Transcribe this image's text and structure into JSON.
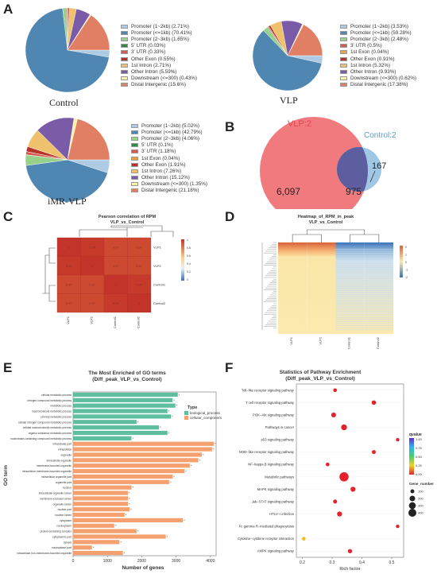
{
  "labels": {
    "A": "A",
    "B": "B",
    "C": "C",
    "D": "D",
    "E": "E",
    "F": "F"
  },
  "colors": {
    "p12": "#aecbe3",
    "p1": "#4f86b2",
    "p23": "#98d18a",
    "utr5": "#2f8a43",
    "utr3": "#d65a4f",
    "exon1": "#e6a046",
    "otherexon": "#b5312a",
    "intron1": "#efc16c",
    "otherintron": "#7a5ba8",
    "downstream": "#f7f3a3",
    "distal": "#e07f63",
    "vlp2": "#f07a7e",
    "control2": "#8fbde0",
    "overlap": "#5d5ea0",
    "go_bio": "#5fbe9f",
    "go_cell": "#f4a06f"
  },
  "chart_data": [
    {
      "type": "pie",
      "panel": "A",
      "caption": "Control",
      "series": [
        {
          "name": "Promoter (1~2kb) (2.71%)",
          "value": 2.71
        },
        {
          "name": "Promoter (<=1kb) (70.41%)",
          "value": 70.41
        },
        {
          "name": "Promoter (2~3kb) (1.65%)",
          "value": 1.65
        },
        {
          "name": "5' UTR (0.03%)",
          "value": 0.03
        },
        {
          "name": "3' UTR (0.33%)",
          "value": 0.33
        },
        {
          "name": "Other Exon (0.55%)",
          "value": 0.55
        },
        {
          "name": "1st Intron (2.71%)",
          "value": 2.71
        },
        {
          "name": "Other Intron (5.59%)",
          "value": 5.59
        },
        {
          "name": "Downstream (<=300) (0.43%)",
          "value": 0.43
        },
        {
          "name": "Distal Intergenic (15.6%)",
          "value": 15.6
        }
      ]
    },
    {
      "type": "pie",
      "panel": "A",
      "caption": "VLP",
      "series": [
        {
          "name": "Promoter (1~2kb) (3.53%)",
          "value": 3.53
        },
        {
          "name": "Promoter (<=1kb) (59.28%)",
          "value": 59.28
        },
        {
          "name": "Promoter (2~3kb) (2.48%)",
          "value": 2.48
        },
        {
          "name": "3' UTR (0.5%)",
          "value": 0.5
        },
        {
          "name": "1st Exon (0.04%)",
          "value": 0.04
        },
        {
          "name": "Other Exon (0.91%)",
          "value": 0.91
        },
        {
          "name": "1st Intron (5.32%)",
          "value": 5.32
        },
        {
          "name": "Other Intron (9.93%)",
          "value": 9.93
        },
        {
          "name": "Downstream (<=300) (0.62%)",
          "value": 0.62
        },
        {
          "name": "Distal Intergenic (17.38%)",
          "value": 17.38
        }
      ]
    },
    {
      "type": "pie",
      "panel": "A",
      "caption": "iMR-VLP",
      "series": [
        {
          "name": "Promoter (1~2kb) (5.02%)",
          "value": 5.02
        },
        {
          "name": "Promoter (<=1kb) (42.79%)",
          "value": 42.79
        },
        {
          "name": "Promoter (2~3kb) (4.06%)",
          "value": 4.06
        },
        {
          "name": "5' UTR (0.1%)",
          "value": 0.1
        },
        {
          "name": "3' UTR (1.18%)",
          "value": 1.18
        },
        {
          "name": "1st Exon (0.04%)",
          "value": 0.04
        },
        {
          "name": "Other Exon (1.91%)",
          "value": 1.91
        },
        {
          "name": "1st Intron (7.26%)",
          "value": 7.26
        },
        {
          "name": "Other Intron (15.12%)",
          "value": 15.12
        },
        {
          "name": "Downstream (<=300) (1.35%)",
          "value": 1.35
        },
        {
          "name": "Distal Intergenic (21.18%)",
          "value": 21.18
        }
      ]
    },
    {
      "type": "venn",
      "panel": "B",
      "sets": [
        {
          "name": "VLP:2",
          "only": "6,097"
        },
        {
          "name": "Control:2",
          "only": "167"
        }
      ],
      "overlap": "975"
    },
    {
      "type": "heatmap",
      "panel": "C",
      "title": "Pearson correlation of RPM",
      "subtitle": "VLP_vs_Control",
      "rows": [
        "VLP1",
        "VLP2",
        "Control1",
        "Control2"
      ],
      "cols": [
        "VLP1",
        "VLP2",
        "Control1",
        "Control2"
      ],
      "values": [
        [
          1,
          0.99,
          0.97,
          0.97
        ],
        [
          0.99,
          1,
          0.97,
          0.97
        ],
        [
          0.97,
          0.97,
          1,
          0.99
        ],
        [
          0.97,
          0.97,
          0.99,
          1
        ]
      ],
      "legend_ticks": [
        "1",
        "0.8",
        "0.6",
        "0.4",
        "0.2",
        "0"
      ]
    },
    {
      "type": "heatmap",
      "panel": "D",
      "title": "Heatmap_of_RPM_in_peak",
      "subtitle": "VLP_vs_Control",
      "cols": [
        "VLP1",
        "VLP2",
        "Control1",
        "Control2"
      ],
      "legend_ticks": [
        "2",
        "1",
        "0",
        "-1",
        "-2"
      ]
    },
    {
      "type": "bar",
      "panel": "E",
      "title": "The Most Enriched of GO terms",
      "subtitle": "(Diff_peak_VLP_vs_Control)",
      "xlabel": "Number of genes",
      "ylabel": "GO term",
      "xlim": [
        0,
        4000
      ],
      "xticks": [
        "0",
        "1000",
        "2000",
        "3000",
        "4000"
      ],
      "legend_title": "Type",
      "legend": [
        "biological_process",
        "cellular_component"
      ],
      "categories": [
        "cellular metabolic process",
        "nitrogen compound metabolic process",
        "metabolic process",
        "macromolecule metabolic process",
        "primary metabolic process",
        "cellular nitrogen compound metabolic process",
        "cellular macromolecule metabolic process",
        "organic substance metabolic process",
        "nucleobase-containing compound metabolic process",
        "intracellular part",
        "intracellular",
        "organelle",
        "intracellular organelle",
        "membrane-bounded organelle",
        "intracellular membrane-bounded organelle",
        "intracellular organelle part",
        "organelle part",
        "nucleus",
        "intracellular organelle lumen",
        "membrane-enclosed lumen",
        "organelle lumen",
        "nuclear part",
        "nuclear lumen",
        "cytoplasm",
        "nucleoplasm",
        "protein-containing complex",
        "cytoplasmic part",
        "cytosol",
        "nucleoplasm part",
        "intracellular non-membrane-bounded organelle"
      ],
      "types": [
        "bp",
        "bp",
        "bp",
        "bp",
        "bp",
        "bp",
        "bp",
        "bp",
        "bp",
        "cc",
        "cc",
        "cc",
        "cc",
        "cc",
        "cc",
        "cc",
        "cc",
        "cc",
        "cc",
        "cc",
        "cc",
        "cc",
        "cc",
        "cc",
        "cc",
        "cc",
        "cc",
        "cc",
        "cc",
        "cc"
      ],
      "values": [
        3050,
        2900,
        2980,
        2750,
        2850,
        1850,
        2500,
        2750,
        1700,
        4100,
        4050,
        3750,
        3650,
        3400,
        3250,
        2900,
        2800,
        1700,
        1600,
        1600,
        1600,
        1650,
        1500,
        3200,
        1200,
        1850,
        2700,
        1350,
        550,
        1450
      ]
    },
    {
      "type": "scatter",
      "panel": "F",
      "title": "Statistics of Pathway Enrichment",
      "subtitle": "(Diff_peak_VLP_vs_Control)",
      "xlabel": "Rich factor",
      "xticks": [
        "0.2",
        "0.3",
        "0.4",
        "0.5"
      ],
      "xlim": [
        0.18,
        0.54
      ],
      "colorbar_title": "qvalue",
      "colorbar_ticks": [
        "1.00",
        "0.75",
        "0.50",
        "0.25",
        "0.00"
      ],
      "size_title": "Gene_number",
      "size_ticks": [
        "100",
        "200",
        "300",
        "400"
      ],
      "categories": [
        "Toll−like receptor signaling pathway",
        "T cell receptor signaling pathway",
        "PI3K−Akt signaling pathway",
        "Pathways in cancer",
        "p53 signaling pathway",
        "NOD−like receptor signaling pathway",
        "NF−kappa B signaling pathway",
        "Metabolic pathways",
        "MAPK signaling pathway",
        "Jak−STAT signaling pathway",
        "HTLV−I infection",
        "Fc gamma R−mediated phagocytosis",
        "Cytokine−cytokine receptor interaction",
        "AMPK signaling pathway"
      ],
      "x": [
        0.31,
        0.44,
        0.305,
        0.34,
        0.52,
        0.44,
        0.285,
        0.34,
        0.37,
        0.31,
        0.325,
        0.52,
        0.205,
        0.36
      ],
      "size": [
        60,
        90,
        110,
        170,
        50,
        70,
        60,
        460,
        120,
        70,
        120,
        50,
        60,
        80
      ],
      "q": [
        0.02,
        0.02,
        0.02,
        0.02,
        0.02,
        0.02,
        0.02,
        0.02,
        0.02,
        0.02,
        0.02,
        0.02,
        0.6,
        0.02
      ]
    }
  ]
}
